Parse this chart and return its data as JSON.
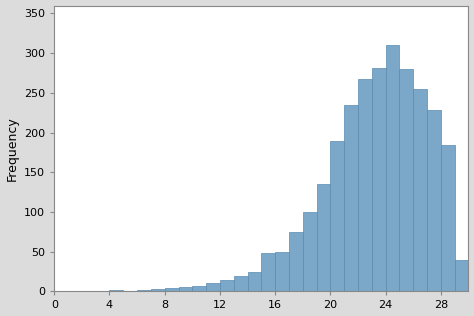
{
  "bin_edges": [
    0,
    1,
    2,
    3,
    4,
    5,
    6,
    7,
    8,
    9,
    10,
    11,
    12,
    13,
    14,
    15,
    16,
    17,
    18,
    19,
    20,
    21,
    22,
    23,
    24,
    25,
    26,
    27,
    28,
    29
  ],
  "frequencies": [
    1,
    1,
    0,
    1,
    2,
    1,
    2,
    3,
    4,
    5,
    7,
    10,
    14,
    20,
    25,
    48,
    50,
    75,
    100,
    135,
    190,
    235,
    267,
    281,
    310,
    280,
    255,
    228,
    185,
    40
  ],
  "bar_color": "#7ba7c9",
  "bar_edgecolor": "#5a8ab0",
  "ylabel": "Frequency",
  "xlim": [
    0,
    30
  ],
  "ylim": [
    0,
    360
  ],
  "xticks": [
    0,
    4,
    8,
    12,
    16,
    20,
    24,
    28
  ],
  "yticks": [
    0,
    50,
    100,
    150,
    200,
    250,
    300,
    350
  ],
  "background_color": "#dcdcdc",
  "plot_bg_color": "#ffffff",
  "ylabel_fontsize": 9,
  "tick_fontsize": 8,
  "linewidth": 0.5
}
